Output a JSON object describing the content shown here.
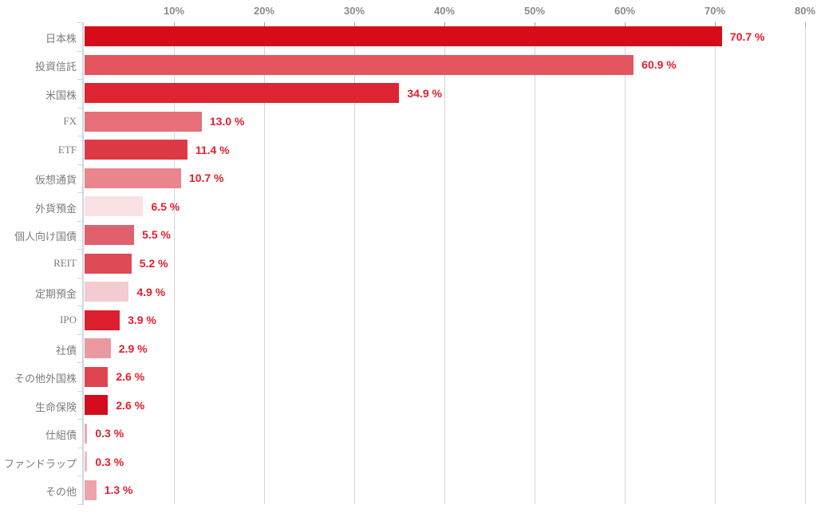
{
  "chart_data": {
    "type": "bar",
    "orientation": "horizontal",
    "title": "",
    "xlabel": "",
    "ylabel": "",
    "xlim": [
      0,
      80
    ],
    "grid": "vertical",
    "axis_position": "top",
    "x_ticks": [
      {
        "label": "10%",
        "value": 10
      },
      {
        "label": "20%",
        "value": 20
      },
      {
        "label": "30%",
        "value": 30
      },
      {
        "label": "40%",
        "value": 40
      },
      {
        "label": "50%",
        "value": 50
      },
      {
        "label": "60%",
        "value": 60
      },
      {
        "label": "70%",
        "value": 70
      },
      {
        "label": "80%",
        "value": 80
      }
    ],
    "categories": [
      "日本株",
      "投資信託",
      "米国株",
      "FX",
      "ETF",
      "仮想通貨",
      "外貨預金",
      "個人向け国債",
      "REIT",
      "定期預金",
      "IPO",
      "社債",
      "その他外国株",
      "生命保険",
      "仕組債",
      "ファンドラップ",
      "その他"
    ],
    "values": [
      70.7,
      60.9,
      34.9,
      13.0,
      11.4,
      10.7,
      6.5,
      5.5,
      5.2,
      4.9,
      3.9,
      2.9,
      2.6,
      2.6,
      0.3,
      0.3,
      1.3
    ],
    "value_labels": [
      "70.7 %",
      "60.9 %",
      "34.9 %",
      "13.0 %",
      "11.4 %",
      "10.7 %",
      "6.5 %",
      "5.5 %",
      "5.2 %",
      "4.9 %",
      "3.9 %",
      "2.9 %",
      "2.6 %",
      "2.6 %",
      "0.3 %",
      "0.3 %",
      "1.3 %"
    ],
    "bar_colors": [
      "#d60c18",
      "#e45560",
      "#dc2433",
      "#e66f79",
      "#de3a46",
      "#ea858e",
      "#f9e1e4",
      "#e0606c",
      "#de4a56",
      "#f3cbd0",
      "#dc1f2e",
      "#ea99a1",
      "#dd4450",
      "#d50c1d",
      "#f0a9b0",
      "#f5bac2",
      "#eda3ab"
    ],
    "value_label_color": "#e41e2c",
    "category_label_color": "#7c7c7c",
    "axis_label_color": "#8a8a8a",
    "gridline_color": "#d4d4d4",
    "y_axis_color": "#ccd6e6",
    "legend": "none"
  }
}
